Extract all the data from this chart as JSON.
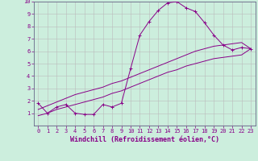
{
  "xlabel": "Windchill (Refroidissement éolien,°C)",
  "bg_color": "#cceedd",
  "grid_color": "#bbbbbb",
  "line_color": "#880088",
  "tick_color": "#880088",
  "xlim": [
    -0.5,
    23.5
  ],
  "ylim": [
    0,
    10
  ],
  "xticks": [
    0,
    1,
    2,
    3,
    4,
    5,
    6,
    7,
    8,
    9,
    10,
    11,
    12,
    13,
    14,
    15,
    16,
    17,
    18,
    19,
    20,
    21,
    22,
    23
  ],
  "yticks": [
    1,
    2,
    3,
    4,
    5,
    6,
    7,
    8,
    9,
    10
  ],
  "curve1_x": [
    0,
    1,
    2,
    3,
    4,
    5,
    6,
    7,
    8,
    9,
    10,
    11,
    12,
    13,
    14,
    15,
    16,
    17,
    18,
    19,
    20,
    21,
    22,
    23
  ],
  "curve1_y": [
    1.8,
    1.0,
    1.5,
    1.7,
    1.0,
    0.9,
    0.9,
    1.7,
    1.5,
    1.8,
    4.6,
    7.3,
    8.4,
    9.3,
    9.9,
    10.0,
    9.5,
    9.2,
    8.3,
    7.3,
    6.5,
    6.1,
    6.3,
    6.2
  ],
  "curve2_x": [
    0,
    1,
    2,
    3,
    4,
    5,
    6,
    7,
    8,
    9,
    10,
    11,
    12,
    13,
    14,
    15,
    16,
    17,
    18,
    19,
    20,
    21,
    22,
    23
  ],
  "curve2_y": [
    1.3,
    1.6,
    1.9,
    2.2,
    2.5,
    2.7,
    2.9,
    3.1,
    3.4,
    3.6,
    3.9,
    4.2,
    4.5,
    4.8,
    5.1,
    5.4,
    5.7,
    6.0,
    6.2,
    6.4,
    6.5,
    6.6,
    6.7,
    6.2
  ],
  "curve3_x": [
    0,
    1,
    2,
    3,
    4,
    5,
    6,
    7,
    8,
    9,
    10,
    11,
    12,
    13,
    14,
    15,
    16,
    17,
    18,
    19,
    20,
    21,
    22,
    23
  ],
  "curve3_y": [
    0.8,
    1.0,
    1.3,
    1.5,
    1.7,
    1.9,
    2.1,
    2.3,
    2.6,
    2.8,
    3.1,
    3.4,
    3.7,
    4.0,
    4.3,
    4.5,
    4.8,
    5.0,
    5.2,
    5.4,
    5.5,
    5.6,
    5.7,
    6.2
  ],
  "spine_color": "#666688",
  "xlabel_fontsize": 6.0,
  "tick_fontsize": 5.0,
  "linewidth": 0.7,
  "markersize": 3.0
}
